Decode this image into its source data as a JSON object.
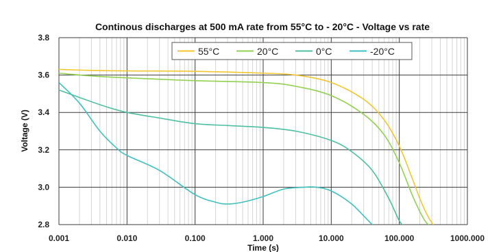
{
  "chart_data": {
    "type": "line",
    "title": "Continous discharges at 500 mA rate from 55°C to - 20°C - Voltage vs rate",
    "xlabel": "Time (s)",
    "ylabel": "Voltage (V)",
    "xscale": "log",
    "xlim": [
      0.001,
      1000
    ],
    "ylim": [
      2.8,
      3.8
    ],
    "x_ticks": [
      "0.001",
      "0.010",
      "0.100",
      "1.000",
      "10.000",
      "100.000",
      "1000.000"
    ],
    "y_ticks": [
      "2.8",
      "3.0",
      "3.2",
      "3.4",
      "3.6",
      "3.8"
    ],
    "grid": true,
    "legend_position": "top-right",
    "series": [
      {
        "name": "55°C",
        "color": "#f2c62f",
        "x": [
          0.001,
          0.003,
          0.01,
          0.1,
          1,
          3,
          10,
          30,
          60,
          100,
          150,
          200,
          250,
          300,
          330
        ],
        "y": [
          3.63,
          3.625,
          3.622,
          3.62,
          3.61,
          3.6,
          3.56,
          3.47,
          3.36,
          3.22,
          3.06,
          2.94,
          2.86,
          2.81,
          2.79
        ]
      },
      {
        "name": "20°C",
        "color": "#92d050",
        "x": [
          0.001,
          0.003,
          0.01,
          0.1,
          1,
          3,
          10,
          30,
          60,
          100,
          150,
          200,
          250,
          300
        ],
        "y": [
          3.61,
          3.595,
          3.585,
          3.57,
          3.56,
          3.54,
          3.49,
          3.39,
          3.28,
          3.13,
          2.97,
          2.87,
          2.81,
          2.79
        ]
      },
      {
        "name": "0°C",
        "color": "#4bbfa0",
        "x": [
          0.001,
          0.002,
          0.005,
          0.01,
          0.03,
          0.1,
          0.3,
          1,
          3,
          10,
          20,
          40,
          70,
          100,
          120
        ],
        "y": [
          3.52,
          3.48,
          3.43,
          3.4,
          3.37,
          3.34,
          3.33,
          3.32,
          3.3,
          3.25,
          3.19,
          3.09,
          2.94,
          2.82,
          2.79
        ]
      },
      {
        "name": "-20°C",
        "color": "#3fbfbf",
        "x": [
          0.001,
          0.002,
          0.004,
          0.007,
          0.01,
          0.03,
          0.1,
          0.2,
          0.3,
          0.5,
          1,
          2,
          4,
          6,
          10,
          20,
          40,
          60
        ],
        "y": [
          3.56,
          3.45,
          3.3,
          3.21,
          3.17,
          3.09,
          2.96,
          2.92,
          2.91,
          2.92,
          2.95,
          2.99,
          3.0,
          3.0,
          2.98,
          2.91,
          2.8,
          2.75
        ]
      }
    ]
  }
}
